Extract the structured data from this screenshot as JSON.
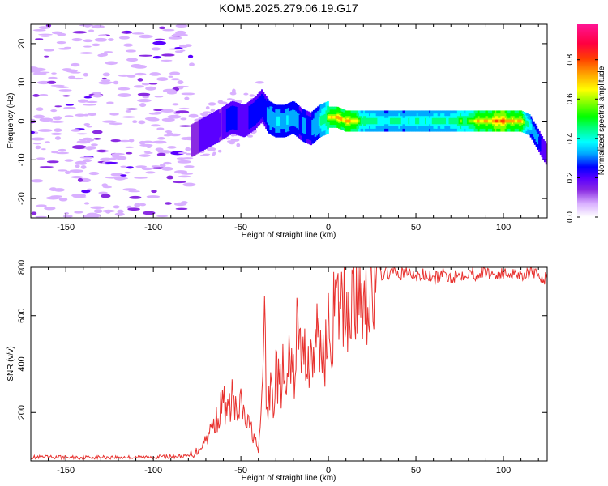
{
  "title": "KOM5.2025.279.06.19.G17",
  "chart_data": [
    {
      "type": "heatmap",
      "name": "spectrogram",
      "xlabel": "Height of straight line (km)",
      "ylabel": "Frequency (Hz)",
      "xlim": [
        -170,
        125
      ],
      "ylim": [
        -25,
        25
      ],
      "xticks": [
        -150,
        -100,
        -50,
        0,
        50,
        100
      ],
      "yticks": [
        -20,
        -10,
        0,
        10,
        20
      ],
      "colorbar": {
        "label": "Normalized spectral amplitude",
        "range": [
          0,
          0.98
        ],
        "ticks": [
          0.0,
          0.2,
          0.4,
          0.6,
          0.8
        ],
        "tick_labels": [
          "0.0",
          "0.2",
          "0.4",
          "0.6",
          "0.8"
        ],
        "colors": [
          "#ffffff",
          "#d9b0ff",
          "#8a2be2",
          "#5a00ff",
          "#0000ff",
          "#00aaff",
          "#00ffff",
          "#00ff80",
          "#00ff00",
          "#80ff00",
          "#ffff00",
          "#ffa500",
          "#ff4000",
          "#ff0040",
          "#ff1493"
        ]
      },
      "ridge": {
        "x": [
          -78,
          -70,
          -62,
          -55,
          -48,
          -42,
          -38,
          -34,
          -30,
          -25,
          -20,
          -15,
          -10,
          -5,
          0,
          5,
          10,
          20,
          30,
          40,
          50,
          60,
          70,
          80,
          90,
          100,
          110,
          115,
          120,
          125
        ],
        "y": [
          -5,
          -3,
          -1,
          1,
          0,
          2,
          4,
          1,
          0,
          0,
          1,
          -1,
          -2,
          0,
          1,
          1,
          0,
          0,
          0,
          0,
          0,
          0,
          0,
          0,
          0,
          0,
          0,
          -1,
          -5,
          -9
        ],
        "amp": [
          0.15,
          0.2,
          0.18,
          0.25,
          0.22,
          0.25,
          0.28,
          0.3,
          0.35,
          0.35,
          0.3,
          0.3,
          0.25,
          0.4,
          0.6,
          0.7,
          0.75,
          0.5,
          0.4,
          0.42,
          0.4,
          0.42,
          0.45,
          0.55,
          0.7,
          0.8,
          0.65,
          0.4,
          0.25,
          0.15
        ]
      },
      "noise_region": [
        -170,
        -78
      ]
    },
    {
      "type": "line",
      "name": "snr",
      "xlabel": "Height of straight line (km)",
      "ylabel": "SNR (v/v)",
      "xlim": [
        -170,
        125
      ],
      "ylim": [
        0,
        800
      ],
      "xticks": [
        -150,
        -100,
        -50,
        0,
        50,
        100
      ],
      "yticks": [
        200,
        400,
        600,
        800
      ],
      "color": "#e8322f",
      "series": [
        {
          "name": "SNR",
          "x": [
            -170,
            -150,
            -130,
            -110,
            -90,
            -80,
            -75,
            -70,
            -65,
            -62,
            -60,
            -57,
            -55,
            -52,
            -50,
            -47,
            -45,
            -42,
            -40,
            -38,
            -37,
            -35,
            -33,
            -31,
            -30,
            -28,
            -26,
            -24,
            -22,
            -20,
            -18,
            -15,
            -12,
            -10,
            -8,
            -5,
            -3,
            0,
            3,
            6,
            9,
            12,
            15,
            20,
            25,
            30,
            35,
            40,
            45,
            50,
            55,
            60,
            65,
            70,
            75,
            80,
            85,
            90,
            95,
            100,
            105,
            110,
            115,
            120,
            125
          ],
          "y": [
            15,
            15,
            15,
            15,
            18,
            20,
            40,
            90,
            160,
            200,
            250,
            190,
            280,
            170,
            230,
            160,
            140,
            100,
            20,
            260,
            640,
            180,
            300,
            240,
            400,
            290,
            360,
            250,
            440,
            330,
            540,
            420,
            450,
            390,
            480,
            500,
            440,
            520,
            590,
            620,
            630,
            660,
            680,
            720,
            750,
            770,
            780,
            770,
            780,
            760,
            770,
            750,
            770,
            760,
            770,
            780,
            770,
            780,
            770,
            770,
            780,
            770,
            780,
            760,
            750
          ]
        }
      ]
    }
  ]
}
